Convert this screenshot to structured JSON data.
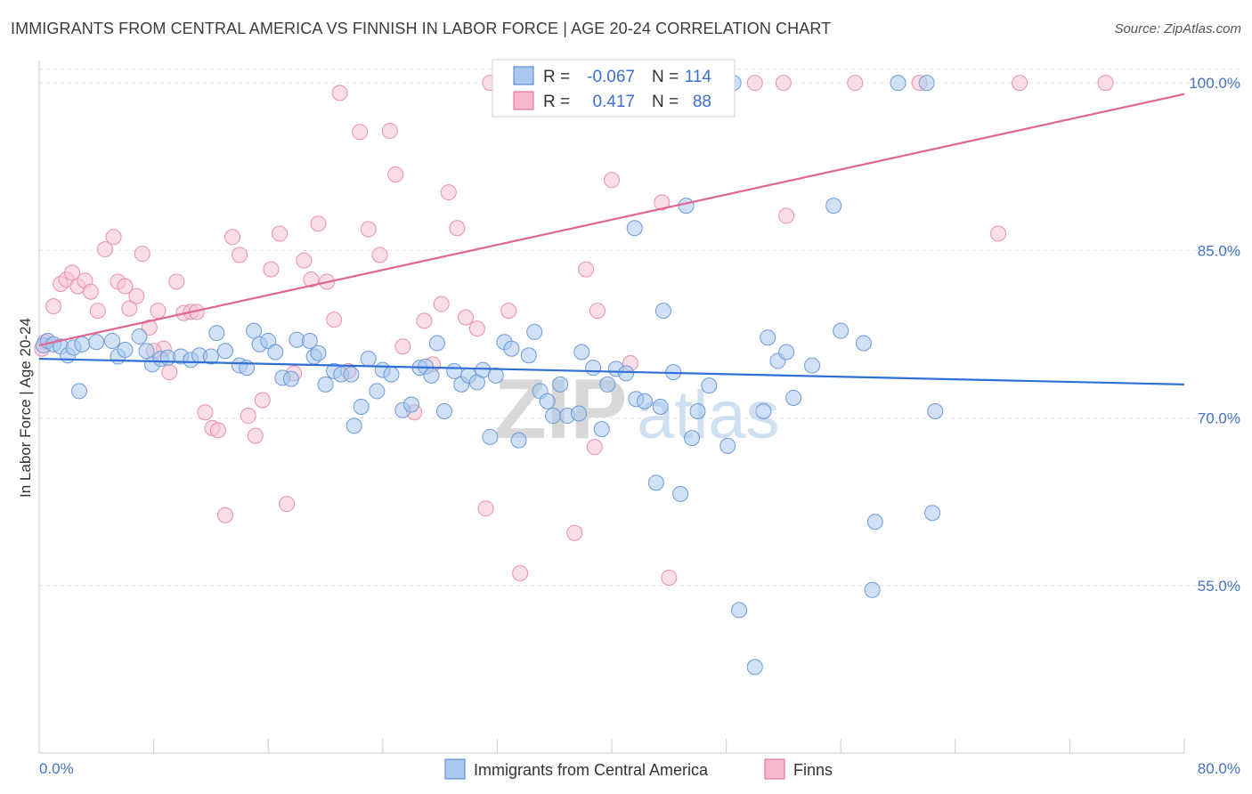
{
  "title": "IMMIGRANTS FROM CENTRAL AMERICA VS FINNISH IN LABOR FORCE | AGE 20-24 CORRELATION CHART",
  "source": "Source: ZipAtlas.com",
  "watermark": {
    "zip": "ZIP",
    "atlas": "atlas"
  },
  "colors": {
    "blue": "#4a7fd4",
    "blue_fill": "#aac8ee",
    "pink": "#e06090",
    "pink_fill": "#f5b8cc",
    "axis_text": "#4472c4"
  },
  "chart_data": {
    "type": "scatter",
    "title": "IMMIGRANTS FROM CENTRAL AMERICA VS FINNISH IN LABOR FORCE | AGE 20-24 CORRELATION CHART",
    "xlabel": "",
    "ylabel": "In Labor Force | Age 20-24",
    "xlim": [
      0,
      80
    ],
    "ylim": [
      40,
      102
    ],
    "x_tick_labels": [
      "0.0%",
      "80.0%"
    ],
    "y_ticks": [
      55,
      70,
      85,
      100
    ],
    "y_tick_labels": [
      "55.0%",
      "70.0%",
      "85.0%",
      "100.0%"
    ],
    "grid": true,
    "legend_position": "bottom",
    "stats": [
      {
        "r_label": "R =",
        "r": "-0.067",
        "n_label": "N =",
        "n": "114"
      },
      {
        "r_label": "R =",
        "r": "0.417",
        "n_label": "N =",
        "n": "88"
      }
    ],
    "series": [
      {
        "name": "Immigrants from Central America",
        "trend": {
          "x": [
            0,
            80
          ],
          "y": [
            75.3,
            73.0
          ]
        },
        "points": [
          [
            0.3,
            76.5
          ],
          [
            0.6,
            76.9
          ],
          [
            1.0,
            76.6
          ],
          [
            1.5,
            76.4
          ],
          [
            2.0,
            75.6
          ],
          [
            2.4,
            76.3
          ],
          [
            2.8,
            72.4
          ],
          [
            3.0,
            76.6
          ],
          [
            4.0,
            76.8
          ],
          [
            5.1,
            76.9
          ],
          [
            5.5,
            75.5
          ],
          [
            6.0,
            76.1
          ],
          [
            7.0,
            77.3
          ],
          [
            7.5,
            76.0
          ],
          [
            7.9,
            74.8
          ],
          [
            8.5,
            75.3
          ],
          [
            9.0,
            75.4
          ],
          [
            9.9,
            75.5
          ],
          [
            10.6,
            75.2
          ],
          [
            11.2,
            75.6
          ],
          [
            12.0,
            75.5
          ],
          [
            12.4,
            77.6
          ],
          [
            13.0,
            76.0
          ],
          [
            14.0,
            74.7
          ],
          [
            14.5,
            74.5
          ],
          [
            15.0,
            77.8
          ],
          [
            15.4,
            76.6
          ],
          [
            16.0,
            76.9
          ],
          [
            16.5,
            75.9
          ],
          [
            17.0,
            73.6
          ],
          [
            17.6,
            73.5
          ],
          [
            18.0,
            77.0
          ],
          [
            18.9,
            76.9
          ],
          [
            19.2,
            75.5
          ],
          [
            19.5,
            75.8
          ],
          [
            20.0,
            73.0
          ],
          [
            20.6,
            74.2
          ],
          [
            21.1,
            73.9
          ],
          [
            21.8,
            73.9
          ],
          [
            22.0,
            69.3
          ],
          [
            22.5,
            71.0
          ],
          [
            23.0,
            75.3
          ],
          [
            23.6,
            72.4
          ],
          [
            24.0,
            74.3
          ],
          [
            24.6,
            73.9
          ],
          [
            25.4,
            70.7
          ],
          [
            26.0,
            71.2
          ],
          [
            26.6,
            74.5
          ],
          [
            27.0,
            74.6
          ],
          [
            27.4,
            73.8
          ],
          [
            27.8,
            76.7
          ],
          [
            28.3,
            70.6
          ],
          [
            29.0,
            74.2
          ],
          [
            29.5,
            73.0
          ],
          [
            30.0,
            73.8
          ],
          [
            30.6,
            73.2
          ],
          [
            31.0,
            74.3
          ],
          [
            31.5,
            68.3
          ],
          [
            31.9,
            73.8
          ],
          [
            32.5,
            76.8
          ],
          [
            33.0,
            76.2
          ],
          [
            33.5,
            68.0
          ],
          [
            34.2,
            75.6
          ],
          [
            34.6,
            77.7
          ],
          [
            35.0,
            72.4
          ],
          [
            35.5,
            71.5
          ],
          [
            35.9,
            70.2
          ],
          [
            36.4,
            73.0
          ],
          [
            36.9,
            70.2
          ],
          [
            37.7,
            70.4
          ],
          [
            37.9,
            75.9
          ],
          [
            38.7,
            74.5
          ],
          [
            39.3,
            69.0
          ],
          [
            39.7,
            73.0
          ],
          [
            40.3,
            74.4
          ],
          [
            41.0,
            74.0
          ],
          [
            41.6,
            87.0
          ],
          [
            41.7,
            71.7
          ],
          [
            42.3,
            71.5
          ],
          [
            43.1,
            64.2
          ],
          [
            43.4,
            71.0
          ],
          [
            43.6,
            79.6
          ],
          [
            44.3,
            74.1
          ],
          [
            44.8,
            63.2
          ],
          [
            45.2,
            89.0
          ],
          [
            45.6,
            68.2
          ],
          [
            46.0,
            70.6
          ],
          [
            46.8,
            72.9
          ],
          [
            48.1,
            67.5
          ],
          [
            48.9,
            52.8
          ],
          [
            50.0,
            47.7
          ],
          [
            50.6,
            70.6
          ],
          [
            50.9,
            77.2
          ],
          [
            51.6,
            75.1
          ],
          [
            52.2,
            75.9
          ],
          [
            52.7,
            71.8
          ],
          [
            54.0,
            74.7
          ],
          [
            55.5,
            89.0
          ],
          [
            56.0,
            77.8
          ],
          [
            57.6,
            76.7
          ],
          [
            58.2,
            54.6
          ],
          [
            58.4,
            60.7
          ],
          [
            62.4,
            61.5
          ],
          [
            62.6,
            70.6
          ],
          [
            48.5,
            100.0
          ],
          [
            60.0,
            100.0
          ],
          [
            62.0,
            100.0
          ],
          [
            34.0,
            100.0
          ],
          [
            36.0,
            100.0
          ],
          [
            38.0,
            100.0
          ],
          [
            42.0,
            100.0
          ],
          [
            44.0,
            100.0
          ],
          [
            46.0,
            100.0
          ],
          [
            40.0,
            100.0
          ]
        ]
      },
      {
        "name": "Finns",
        "trend": {
          "x": [
            0,
            80
          ],
          "y": [
            76.5,
            99.0
          ]
        },
        "points": [
          [
            0.4,
            76.8
          ],
          [
            1.0,
            80.0
          ],
          [
            1.5,
            82.0
          ],
          [
            1.9,
            82.4
          ],
          [
            2.3,
            83.0
          ],
          [
            2.7,
            81.8
          ],
          [
            3.2,
            82.3
          ],
          [
            3.6,
            81.3
          ],
          [
            4.1,
            79.6
          ],
          [
            4.6,
            85.1
          ],
          [
            5.2,
            86.2
          ],
          [
            5.5,
            82.2
          ],
          [
            6.0,
            81.8
          ],
          [
            6.3,
            79.8
          ],
          [
            6.8,
            80.9
          ],
          [
            7.2,
            84.7
          ],
          [
            7.7,
            78.1
          ],
          [
            8.3,
            79.6
          ],
          [
            8.7,
            76.2
          ],
          [
            9.1,
            74.1
          ],
          [
            9.6,
            82.2
          ],
          [
            10.1,
            79.4
          ],
          [
            10.6,
            79.5
          ],
          [
            11.0,
            79.5
          ],
          [
            11.6,
            70.5
          ],
          [
            12.1,
            69.1
          ],
          [
            12.5,
            68.9
          ],
          [
            13.0,
            61.3
          ],
          [
            13.5,
            86.2
          ],
          [
            14.0,
            84.6
          ],
          [
            14.6,
            70.2
          ],
          [
            15.1,
            68.4
          ],
          [
            15.6,
            71.6
          ],
          [
            16.2,
            83.3
          ],
          [
            16.8,
            86.5
          ],
          [
            17.3,
            62.3
          ],
          [
            17.8,
            74.0
          ],
          [
            18.5,
            84.1
          ],
          [
            19.0,
            82.4
          ],
          [
            19.5,
            87.4
          ],
          [
            20.1,
            82.2
          ],
          [
            20.6,
            78.8
          ],
          [
            21.0,
            99.1
          ],
          [
            21.6,
            74.2
          ],
          [
            22.4,
            95.6
          ],
          [
            23.0,
            86.9
          ],
          [
            23.8,
            84.6
          ],
          [
            24.5,
            95.7
          ],
          [
            24.9,
            91.8
          ],
          [
            25.4,
            76.4
          ],
          [
            26.2,
            70.5
          ],
          [
            26.9,
            78.7
          ],
          [
            27.5,
            74.8
          ],
          [
            28.1,
            80.2
          ],
          [
            28.6,
            90.2
          ],
          [
            29.2,
            87.0
          ],
          [
            29.8,
            79.0
          ],
          [
            30.6,
            78.0
          ],
          [
            31.2,
            61.9
          ],
          [
            32.8,
            79.6
          ],
          [
            33.6,
            56.1
          ],
          [
            37.4,
            59.7
          ],
          [
            38.2,
            83.3
          ],
          [
            38.8,
            67.4
          ],
          [
            39.0,
            79.6
          ],
          [
            40.0,
            91.3
          ],
          [
            41.3,
            74.9
          ],
          [
            43.5,
            89.3
          ],
          [
            44.0,
            55.7
          ],
          [
            52.2,
            88.1
          ],
          [
            67.0,
            86.5
          ],
          [
            31.5,
            100.0
          ],
          [
            33.0,
            100.0
          ],
          [
            35.5,
            100.0
          ],
          [
            37.0,
            100.0
          ],
          [
            39.5,
            100.0
          ],
          [
            41.0,
            100.0
          ],
          [
            43.0,
            100.0
          ],
          [
            45.5,
            100.0
          ],
          [
            47.0,
            100.0
          ],
          [
            50.0,
            100.0
          ],
          [
            52.0,
            100.0
          ],
          [
            57.0,
            100.0
          ],
          [
            61.5,
            100.0
          ],
          [
            68.5,
            100.0
          ],
          [
            74.5,
            100.0
          ],
          [
            0.2,
            76.2
          ],
          [
            8.0,
            76.0
          ]
        ]
      }
    ]
  }
}
